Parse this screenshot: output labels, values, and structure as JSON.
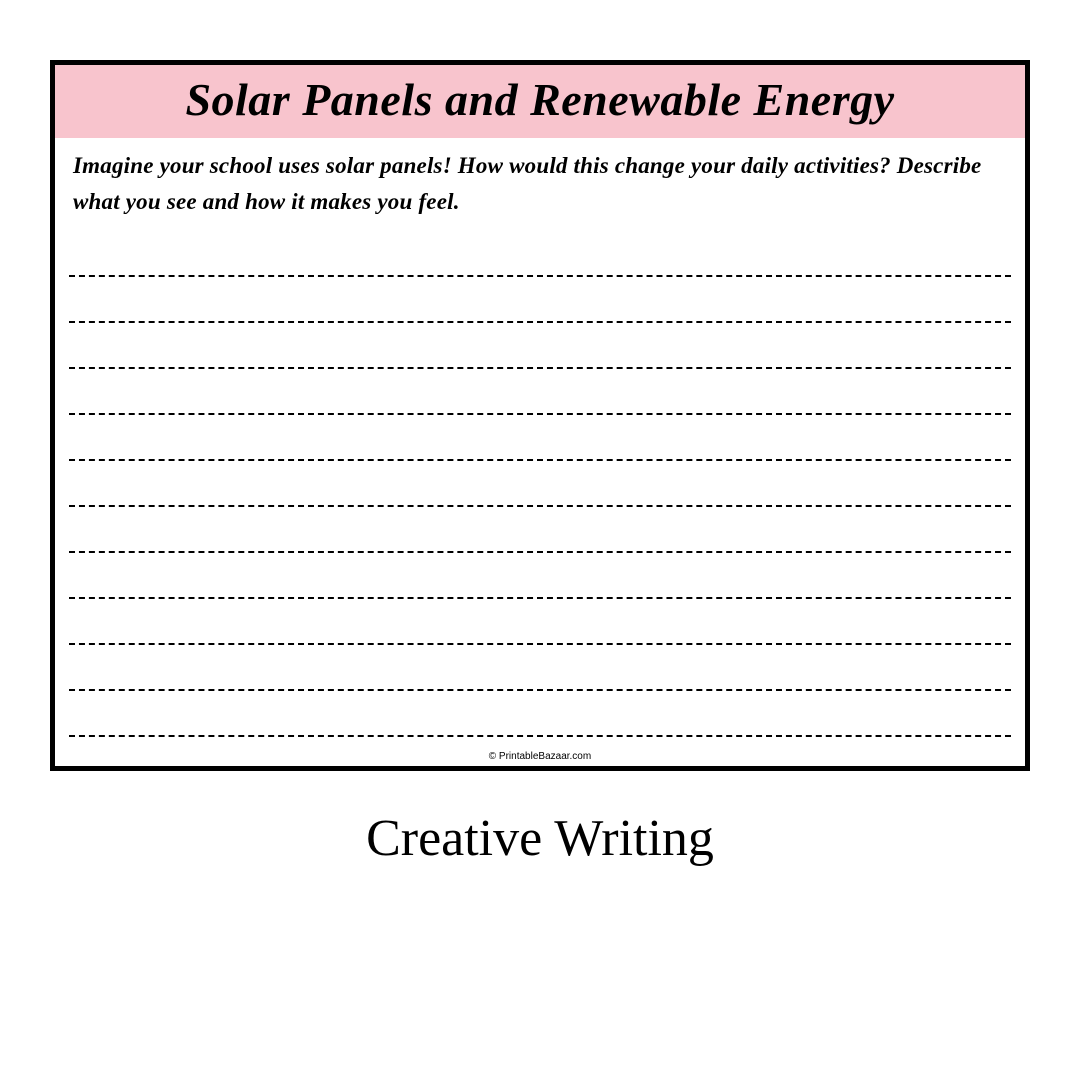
{
  "worksheet": {
    "title": "Solar Panels and Renewable Energy",
    "prompt": "Imagine your school uses solar panels! How would this change your daily activities? Describe what you see and how it makes you feel.",
    "line_count": 11,
    "footer": "© PrintableBazaar.com",
    "title_bg_color": "#f8c4cd",
    "border_color": "#000000",
    "dash_color": "#000000"
  },
  "category": "Creative Writing"
}
